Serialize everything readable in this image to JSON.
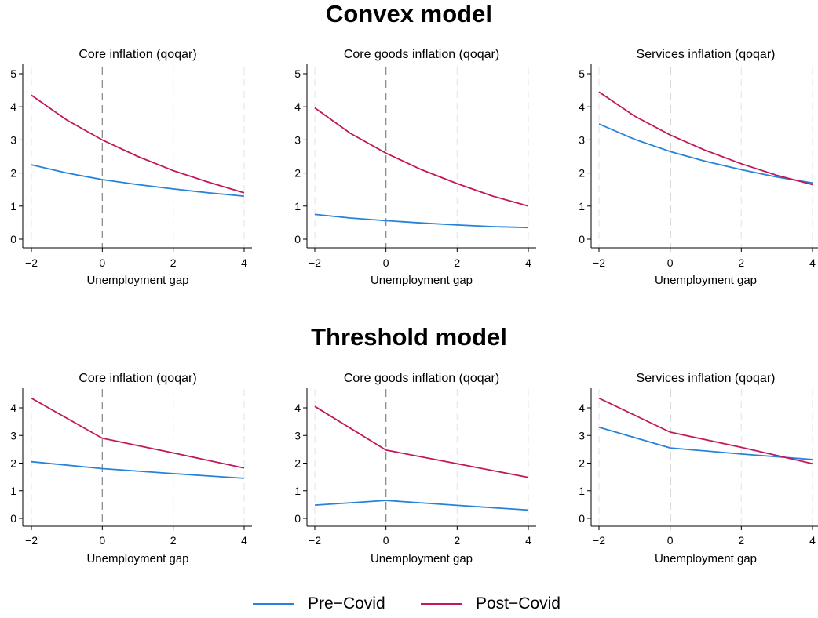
{
  "colors": {
    "pre_covid": "#2683d9",
    "post_covid": "#c2185b",
    "axis": "#000000",
    "zero_line": "#8c8c8c",
    "grid": "#e6e6ee"
  },
  "sections": [
    {
      "title": "Convex model"
    },
    {
      "title": "Threshold model"
    }
  ],
  "legend": [
    {
      "label": "Pre−Covid",
      "color": "#2683d9"
    },
    {
      "label": "Post−Covid",
      "color": "#c2185b"
    }
  ],
  "chart_data": [
    {
      "type": "line",
      "group": "Convex model",
      "title": "Core inflation (qoqar)",
      "xlabel": "Unemployment gap",
      "ylabel": "",
      "xlim": [
        -2,
        4
      ],
      "ylim": [
        0,
        5
      ],
      "xticks": [
        -2,
        0,
        2,
        4
      ],
      "yticks": [
        0,
        1,
        2,
        3,
        4,
        5
      ],
      "grid": "vertical dashed",
      "vline": 0,
      "x": [
        -2,
        -1,
        0,
        1,
        2,
        3,
        4
      ],
      "series": [
        {
          "name": "Pre−Covid",
          "values": [
            2.25,
            2.0,
            1.8,
            1.65,
            1.52,
            1.4,
            1.3
          ]
        },
        {
          "name": "Post−Covid",
          "values": [
            4.35,
            3.6,
            3.0,
            2.5,
            2.07,
            1.72,
            1.4
          ]
        }
      ]
    },
    {
      "type": "line",
      "group": "Convex model",
      "title": "Core goods inflation (qoqar)",
      "xlabel": "Unemployment gap",
      "ylabel": "",
      "xlim": [
        -2,
        4
      ],
      "ylim": [
        0,
        5
      ],
      "xticks": [
        -2,
        0,
        2,
        4
      ],
      "yticks": [
        0,
        1,
        2,
        3,
        4,
        5
      ],
      "grid": "vertical dashed",
      "vline": 0,
      "x": [
        -2,
        -1,
        0,
        1,
        2,
        3,
        4
      ],
      "series": [
        {
          "name": "Pre−Covid",
          "values": [
            0.75,
            0.64,
            0.56,
            0.49,
            0.43,
            0.38,
            0.35
          ]
        },
        {
          "name": "Post−Covid",
          "values": [
            3.97,
            3.2,
            2.6,
            2.1,
            1.68,
            1.3,
            1.0
          ]
        }
      ]
    },
    {
      "type": "line",
      "group": "Convex model",
      "title": "Services inflation (qoqar)",
      "xlabel": "Unemployment gap",
      "ylabel": "",
      "xlim": [
        -2,
        4
      ],
      "ylim": [
        0,
        5
      ],
      "xticks": [
        -2,
        0,
        2,
        4
      ],
      "yticks": [
        0,
        1,
        2,
        3,
        4,
        5
      ],
      "grid": "vertical dashed",
      "vline": 0,
      "x": [
        -2,
        -1,
        0,
        1,
        2,
        3,
        4
      ],
      "series": [
        {
          "name": "Pre−Covid",
          "values": [
            3.48,
            3.02,
            2.65,
            2.35,
            2.1,
            1.88,
            1.7
          ]
        },
        {
          "name": "Post−Covid",
          "values": [
            4.45,
            3.72,
            3.15,
            2.68,
            2.28,
            1.93,
            1.65
          ]
        }
      ]
    },
    {
      "type": "line",
      "group": "Threshold model",
      "title": "Core inflation (qoqar)",
      "xlabel": "Unemployment gap",
      "ylabel": "",
      "xlim": [
        -2,
        4
      ],
      "ylim": [
        0,
        4.5
      ],
      "xticks": [
        -2,
        0,
        2,
        4
      ],
      "yticks": [
        0,
        1,
        2,
        3,
        4
      ],
      "grid": "vertical dashed",
      "vline": 0,
      "x": [
        -2,
        0,
        2,
        4
      ],
      "series": [
        {
          "name": "Pre−Covid",
          "values": [
            2.05,
            1.8,
            1.62,
            1.45
          ]
        },
        {
          "name": "Post−Covid",
          "values": [
            4.35,
            2.9,
            2.37,
            1.82
          ]
        }
      ]
    },
    {
      "type": "line",
      "group": "Threshold model",
      "title": "Core goods inflation (qoqar)",
      "xlabel": "Unemployment gap",
      "ylabel": "",
      "xlim": [
        -2,
        4
      ],
      "ylim": [
        0,
        4.5
      ],
      "xticks": [
        -2,
        0,
        2,
        4
      ],
      "yticks": [
        0,
        1,
        2,
        3,
        4
      ],
      "grid": "vertical dashed",
      "vline": 0,
      "x": [
        -2,
        0,
        2,
        4
      ],
      "series": [
        {
          "name": "Pre−Covid",
          "values": [
            0.48,
            0.65,
            0.47,
            0.3
          ]
        },
        {
          "name": "Post−Covid",
          "values": [
            4.05,
            2.47,
            1.98,
            1.48
          ]
        }
      ]
    },
    {
      "type": "line",
      "group": "Threshold model",
      "title": "Services inflation (qoqar)",
      "xlabel": "Unemployment gap",
      "ylabel": "",
      "xlim": [
        -2,
        4
      ],
      "ylim": [
        0,
        4.5
      ],
      "xticks": [
        -2,
        0,
        2,
        4
      ],
      "yticks": [
        0,
        1,
        2,
        3,
        4
      ],
      "grid": "vertical dashed",
      "vline": 0,
      "x": [
        -2,
        0,
        2,
        4
      ],
      "series": [
        {
          "name": "Pre−Covid",
          "values": [
            3.3,
            2.55,
            2.33,
            2.13
          ]
        },
        {
          "name": "Post−Covid",
          "values": [
            4.35,
            3.12,
            2.57,
            1.98
          ]
        }
      ]
    }
  ]
}
